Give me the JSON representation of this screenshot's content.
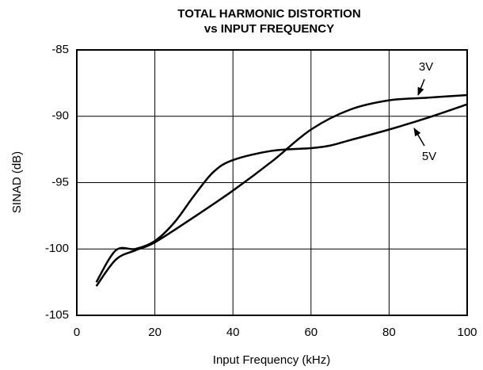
{
  "chart_data": {
    "type": "line",
    "title": "TOTAL HARMONIC DISTORTION",
    "subtitle": "vs INPUT FREQUENCY",
    "x_label": "Input Frequency (kHz)",
    "y_label": "SINAD (dB)",
    "xlim": [
      0,
      100
    ],
    "xticks": [
      0,
      20,
      40,
      60,
      80,
      100
    ],
    "ylim": [
      -105,
      -85
    ],
    "yticks": [
      -105,
      -100,
      -95,
      -90,
      -85
    ],
    "grid": true,
    "series": [
      {
        "name": "3V",
        "color": "#000000",
        "x": [
          5,
          10,
          15,
          20,
          30,
          40,
          50,
          60,
          70,
          80,
          90,
          100
        ],
        "values": [
          -102.8,
          -100.8,
          -100.1,
          -99.5,
          -97.6,
          -95.6,
          -93.4,
          -91,
          -89.5,
          -88.8,
          -88.6,
          -88.4
        ]
      },
      {
        "name": "5V",
        "color": "#000000",
        "x": [
          5,
          10,
          15,
          20,
          25,
          30,
          35,
          40,
          50,
          60,
          65,
          70,
          80,
          90,
          100
        ],
        "values": [
          -102.5,
          -100.1,
          -100,
          -99.4,
          -98,
          -96,
          -94.2,
          -93.3,
          -92.6,
          -92.4,
          -92.2,
          -91.8,
          -91,
          -90.1,
          -89.1
        ]
      }
    ]
  }
}
